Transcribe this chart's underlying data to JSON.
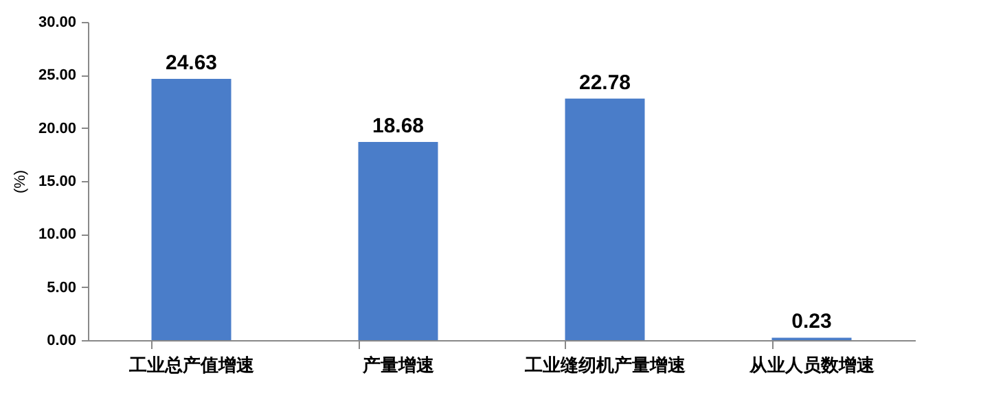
{
  "chart_data": {
    "type": "bar",
    "ylabel": "(%)",
    "categories": [
      "工业总产值增速",
      "产量增速",
      "工业缝纫机产量增速",
      "从业人员数增速"
    ],
    "series": [
      {
        "color": "#4a7dc9",
        "values": [
          24.63,
          18.68,
          22.78,
          0.23
        ]
      }
    ],
    "ylim": [
      0,
      30
    ],
    "yticks": [
      {
        "value": 0,
        "label": "0.00"
      },
      {
        "value": 5,
        "label": "5.00"
      },
      {
        "value": 10,
        "label": "10.00"
      },
      {
        "value": 15,
        "label": "15.00"
      },
      {
        "value": 20,
        "label": "20.00"
      },
      {
        "value": 25,
        "label": "25.00"
      },
      {
        "value": 30,
        "label": "30.00"
      }
    ],
    "data_labels": true,
    "grid": false,
    "legend": false
  }
}
